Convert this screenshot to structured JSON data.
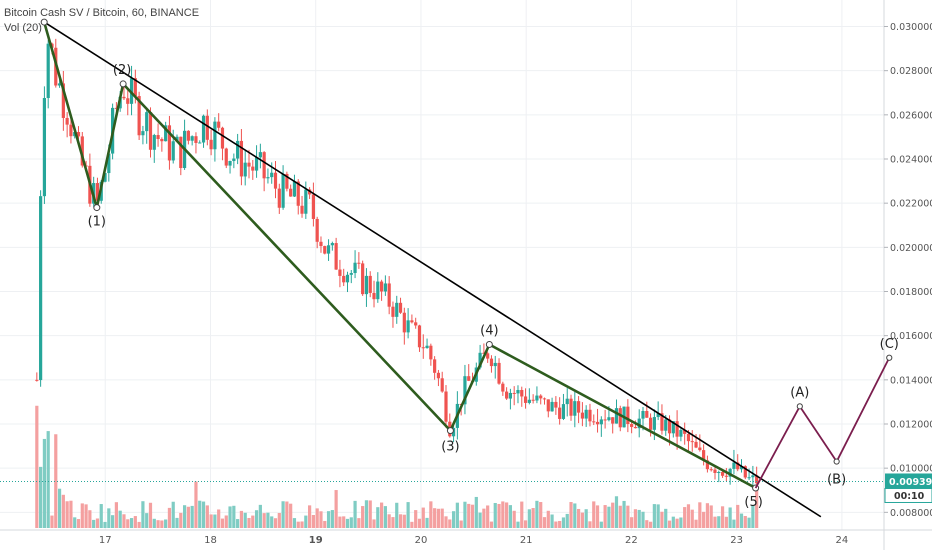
{
  "chart_data": {
    "type": "candlestick",
    "symbol_line": "Bitcoin Cash SV / Bitcoin, 60, BINANCE",
    "volume_label": "Vol (20)",
    "ylim": [
      0.0072,
      0.0312
    ],
    "xlim": [
      16.0,
      24.4
    ],
    "x_ticks": [
      "17",
      "18",
      "19",
      "20",
      "21",
      "22",
      "23",
      "24"
    ],
    "y_ticks": [
      "0.030000",
      "0.028000",
      "0.026000",
      "0.024000",
      "0.022000",
      "0.020000",
      "0.018000",
      "0.016000",
      "0.014000",
      "0.012000",
      "0.010000",
      "0.008000"
    ],
    "current_price": "0.009397",
    "countdown": "00:10",
    "colors": {
      "up": "#26a69a",
      "down": "#ef5350",
      "up_vol": "#7fccc3",
      "down_vol": "#f4a0a0",
      "wave": "#2e5c1e",
      "trend": "#000000",
      "projection": "#7b1e4e",
      "price_line": "#26a69a"
    },
    "price_path": [
      {
        "x": 16.35,
        "y": 0.014
      },
      {
        "x": 16.4,
        "y": 0.0262
      },
      {
        "x": 16.45,
        "y": 0.0296
      },
      {
        "x": 16.55,
        "y": 0.0275
      },
      {
        "x": 16.65,
        "y": 0.0262
      },
      {
        "x": 16.75,
        "y": 0.024
      },
      {
        "x": 16.85,
        "y": 0.0228
      },
      {
        "x": 16.92,
        "y": 0.0218
      },
      {
        "x": 17.0,
        "y": 0.0235
      },
      {
        "x": 17.1,
        "y": 0.0262
      },
      {
        "x": 17.17,
        "y": 0.0274
      },
      {
        "x": 17.3,
        "y": 0.0262
      },
      {
        "x": 17.5,
        "y": 0.025
      },
      {
        "x": 17.7,
        "y": 0.0243
      },
      {
        "x": 17.95,
        "y": 0.0258
      },
      {
        "x": 18.2,
        "y": 0.0242
      },
      {
        "x": 18.45,
        "y": 0.0235
      },
      {
        "x": 18.7,
        "y": 0.0224
      },
      {
        "x": 18.95,
        "y": 0.0218
      },
      {
        "x": 19.1,
        "y": 0.0198
      },
      {
        "x": 19.35,
        "y": 0.0188
      },
      {
        "x": 19.6,
        "y": 0.018
      },
      {
        "x": 19.75,
        "y": 0.0173
      },
      {
        "x": 19.9,
        "y": 0.0162
      },
      {
        "x": 20.05,
        "y": 0.0155
      },
      {
        "x": 20.15,
        "y": 0.0143
      },
      {
        "x": 20.28,
        "y": 0.0118
      },
      {
        "x": 20.4,
        "y": 0.0135
      },
      {
        "x": 20.5,
        "y": 0.0142
      },
      {
        "x": 20.65,
        "y": 0.0154
      },
      {
        "x": 20.8,
        "y": 0.0136
      },
      {
        "x": 21.0,
        "y": 0.0132
      },
      {
        "x": 21.2,
        "y": 0.0128
      },
      {
        "x": 21.5,
        "y": 0.0126
      },
      {
        "x": 21.8,
        "y": 0.0124
      },
      {
        "x": 22.05,
        "y": 0.0122
      },
      {
        "x": 22.3,
        "y": 0.012
      },
      {
        "x": 22.5,
        "y": 0.0114
      },
      {
        "x": 22.7,
        "y": 0.0103
      },
      {
        "x": 22.85,
        "y": 0.0099
      },
      {
        "x": 23.0,
        "y": 0.01
      },
      {
        "x": 23.1,
        "y": 0.0095
      },
      {
        "x": 23.22,
        "y": 0.0094
      }
    ],
    "wave_points": [
      {
        "label": "",
        "x": 16.42,
        "y": 0.0302
      },
      {
        "label": "(1)",
        "x": 16.92,
        "y": 0.0218
      },
      {
        "label": "(2)",
        "x": 17.17,
        "y": 0.0274
      },
      {
        "label": "(3)",
        "x": 20.28,
        "y": 0.0117
      },
      {
        "label": "(4)",
        "x": 20.65,
        "y": 0.0156
      },
      {
        "label": "(5)",
        "x": 23.18,
        "y": 0.0091
      }
    ],
    "projection_points": [
      {
        "label": "",
        "x": 23.18,
        "y": 0.0091
      },
      {
        "label": "(A)",
        "x": 23.6,
        "y": 0.0128
      },
      {
        "label": "(B)",
        "x": 23.95,
        "y": 0.0103
      },
      {
        "label": "(C)",
        "x": 24.45,
        "y": 0.015
      }
    ],
    "trend_line": [
      {
        "x": 16.42,
        "y": 0.0302
      },
      {
        "x": 23.8,
        "y": 0.0078
      }
    ],
    "volume_series_max_ratio": 1.0
  }
}
